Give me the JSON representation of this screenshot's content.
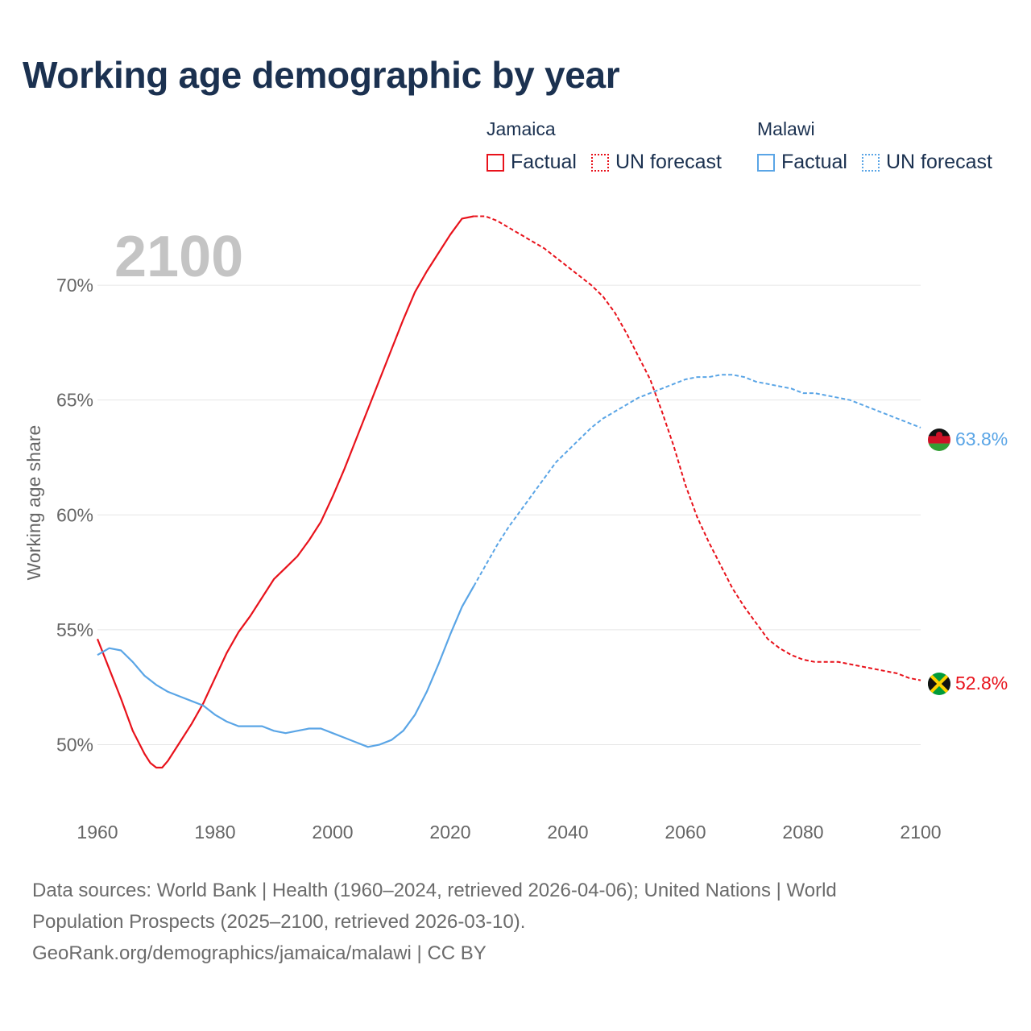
{
  "title": "Working age demographic by year",
  "legend": {
    "groups": [
      {
        "name": "Jamaica",
        "color": "#e8121b",
        "factual_label": "Factual",
        "forecast_label": "UN forecast"
      },
      {
        "name": "Malawi",
        "color": "#5aa5e6",
        "factual_label": "Factual",
        "forecast_label": "UN forecast"
      }
    ]
  },
  "chart_data": {
    "type": "line",
    "title": "Working age demographic by year",
    "current_year_label": "2100",
    "xlabel": "",
    "ylabel": "Working age share",
    "xlim": [
      1960,
      2100
    ],
    "ylim": [
      47,
      74
    ],
    "x_ticks": [
      1960,
      1980,
      2000,
      2020,
      2040,
      2060,
      2080,
      2100
    ],
    "y_ticks": [
      50,
      55,
      60,
      65,
      70
    ],
    "y_tick_labels": [
      "50%",
      "55%",
      "60%",
      "65%",
      "70%"
    ],
    "grid": true,
    "forecast_start_year": 2024,
    "series": [
      {
        "name": "Jamaica",
        "color": "#e8121b",
        "end_label": "52.8%",
        "flag": "jamaica-flag",
        "x": [
          1960,
          1962,
          1964,
          1966,
          1968,
          1969,
          1970,
          1971,
          1972,
          1974,
          1976,
          1978,
          1980,
          1982,
          1984,
          1986,
          1988,
          1990,
          1992,
          1994,
          1996,
          1998,
          2000,
          2002,
          2004,
          2006,
          2008,
          2010,
          2012,
          2014,
          2016,
          2018,
          2020,
          2022,
          2024,
          2026,
          2028,
          2030,
          2032,
          2034,
          2036,
          2038,
          2040,
          2042,
          2044,
          2046,
          2048,
          2050,
          2052,
          2054,
          2056,
          2058,
          2060,
          2062,
          2064,
          2066,
          2068,
          2070,
          2072,
          2074,
          2076,
          2078,
          2080,
          2082,
          2084,
          2086,
          2088,
          2090,
          2092,
          2094,
          2096,
          2098,
          2100
        ],
        "y": [
          54.6,
          53.3,
          52.0,
          50.6,
          49.6,
          49.2,
          49.0,
          49.0,
          49.3,
          50.1,
          50.9,
          51.8,
          52.9,
          54.0,
          54.9,
          55.6,
          56.4,
          57.2,
          57.7,
          58.2,
          58.9,
          59.7,
          60.8,
          62.0,
          63.3,
          64.6,
          65.9,
          67.2,
          68.5,
          69.7,
          70.6,
          71.4,
          72.2,
          72.9,
          73.0,
          73.0,
          72.8,
          72.5,
          72.2,
          71.9,
          71.6,
          71.2,
          70.8,
          70.4,
          70.0,
          69.5,
          68.8,
          67.9,
          66.9,
          65.9,
          64.5,
          63.0,
          61.3,
          59.9,
          58.8,
          57.8,
          56.8,
          56.0,
          55.3,
          54.6,
          54.2,
          53.9,
          53.7,
          53.6,
          53.6,
          53.6,
          53.5,
          53.4,
          53.3,
          53.2,
          53.1,
          52.9,
          52.8
        ]
      },
      {
        "name": "Malawi",
        "color": "#5aa5e6",
        "end_label": "63.8%",
        "flag": "malawi-flag",
        "x": [
          1960,
          1962,
          1964,
          1966,
          1968,
          1970,
          1972,
          1974,
          1976,
          1978,
          1980,
          1982,
          1984,
          1986,
          1988,
          1990,
          1992,
          1994,
          1996,
          1998,
          2000,
          2002,
          2004,
          2006,
          2008,
          2010,
          2012,
          2014,
          2016,
          2018,
          2020,
          2022,
          2024,
          2026,
          2028,
          2030,
          2032,
          2034,
          2036,
          2038,
          2040,
          2042,
          2044,
          2046,
          2048,
          2050,
          2052,
          2054,
          2056,
          2058,
          2060,
          2062,
          2064,
          2066,
          2068,
          2070,
          2072,
          2074,
          2076,
          2078,
          2080,
          2082,
          2084,
          2086,
          2088,
          2090,
          2092,
          2094,
          2096,
          2098,
          2100
        ],
        "y": [
          53.9,
          54.2,
          54.1,
          53.6,
          53.0,
          52.6,
          52.3,
          52.1,
          51.9,
          51.7,
          51.3,
          51.0,
          50.8,
          50.8,
          50.8,
          50.6,
          50.5,
          50.6,
          50.7,
          50.7,
          50.5,
          50.3,
          50.1,
          49.9,
          50.0,
          50.2,
          50.6,
          51.3,
          52.3,
          53.5,
          54.8,
          56.0,
          56.9,
          57.8,
          58.7,
          59.5,
          60.2,
          60.9,
          61.6,
          62.3,
          62.8,
          63.3,
          63.8,
          64.2,
          64.5,
          64.8,
          65.1,
          65.3,
          65.5,
          65.7,
          65.9,
          66.0,
          66.0,
          66.1,
          66.1,
          66.0,
          65.8,
          65.7,
          65.6,
          65.5,
          65.3,
          65.3,
          65.2,
          65.1,
          65.0,
          64.8,
          64.6,
          64.4,
          64.2,
          64.0,
          63.8
        ]
      }
    ]
  },
  "footer": {
    "line1": "Data sources: World Bank | Health (1960–2024, retrieved 2026-04-06); United Nations | World",
    "line2": "Population Prospects (2025–2100, retrieved 2026-03-10).",
    "line3": "GeoRank.org/demographics/jamaica/malawi | CC BY"
  }
}
